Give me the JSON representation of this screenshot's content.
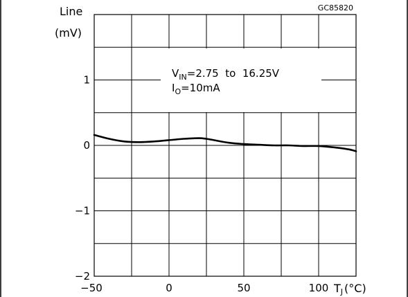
{
  "chart_data": {
    "type": "line",
    "code": "GC85820",
    "ylabel": "Line",
    "yunit": "(mV)",
    "xlabel": "T",
    "xlabel_sub": "J",
    "xunit": "(°C)",
    "xlim": [
      -50,
      125
    ],
    "ylim": [
      -2,
      2
    ],
    "x_ticks": [
      -50,
      0,
      50,
      100
    ],
    "x_tick_labels": [
      "−50",
      "0",
      "50",
      "100"
    ],
    "y_ticks": [
      -2,
      -1,
      0,
      1
    ],
    "y_tick_labels": [
      "−2",
      "−1",
      "0",
      "1"
    ],
    "grid": true,
    "annotation": {
      "line1_main": "V",
      "line1_sub": "IN",
      "line1_rest": "=2.75  to  16.25V",
      "line2_main": "I",
      "line2_sub": "O",
      "line2_rest": "=10mA"
    },
    "series": [
      {
        "x": [
          -50,
          -40,
          -30,
          -20,
          -10,
          0,
          10,
          20,
          25,
          30,
          40,
          50,
          60,
          70,
          80,
          90,
          100,
          110,
          120,
          125
        ],
        "y": [
          0.16,
          0.1,
          0.06,
          0.05,
          0.06,
          0.08,
          0.1,
          0.11,
          0.1,
          0.08,
          0.04,
          0.02,
          0.01,
          0.0,
          0.0,
          -0.01,
          -0.01,
          -0.03,
          -0.06,
          -0.09
        ]
      }
    ]
  }
}
